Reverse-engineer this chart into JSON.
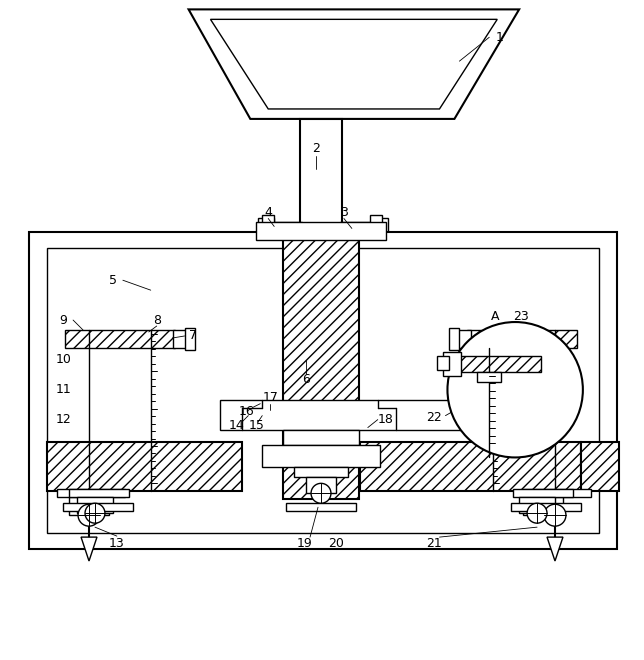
{
  "bg_color": "#ffffff",
  "lw": 1.0,
  "lw2": 1.5,
  "figw": 6.44,
  "figh": 6.6,
  "dpi": 100
}
